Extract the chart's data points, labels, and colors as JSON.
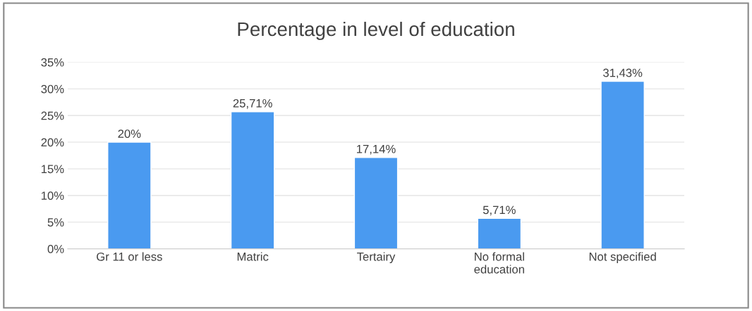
{
  "chart_data": {
    "type": "bar",
    "title": "Percentage in level of education",
    "categories": [
      "Gr 11 or less",
      "Matric",
      "Tertairy",
      "No formal\neducation",
      "Not specified"
    ],
    "values": [
      20,
      25.71,
      17.14,
      5.71,
      31.43
    ],
    "value_labels": [
      "20%",
      "25,71%",
      "17,14%",
      "5,71%",
      "31,43%"
    ],
    "color": "#4a9af0",
    "ylim": [
      0,
      35
    ],
    "yticks": [
      {
        "value": 0,
        "label": "0%"
      },
      {
        "value": 5,
        "label": "5%"
      },
      {
        "value": 10,
        "label": "10%"
      },
      {
        "value": 15,
        "label": "15%"
      },
      {
        "value": 20,
        "label": "20%"
      },
      {
        "value": 25,
        "label": "25%"
      },
      {
        "value": 30,
        "label": "30%"
      },
      {
        "value": 35,
        "label": "35%"
      }
    ],
    "grid": "y"
  }
}
